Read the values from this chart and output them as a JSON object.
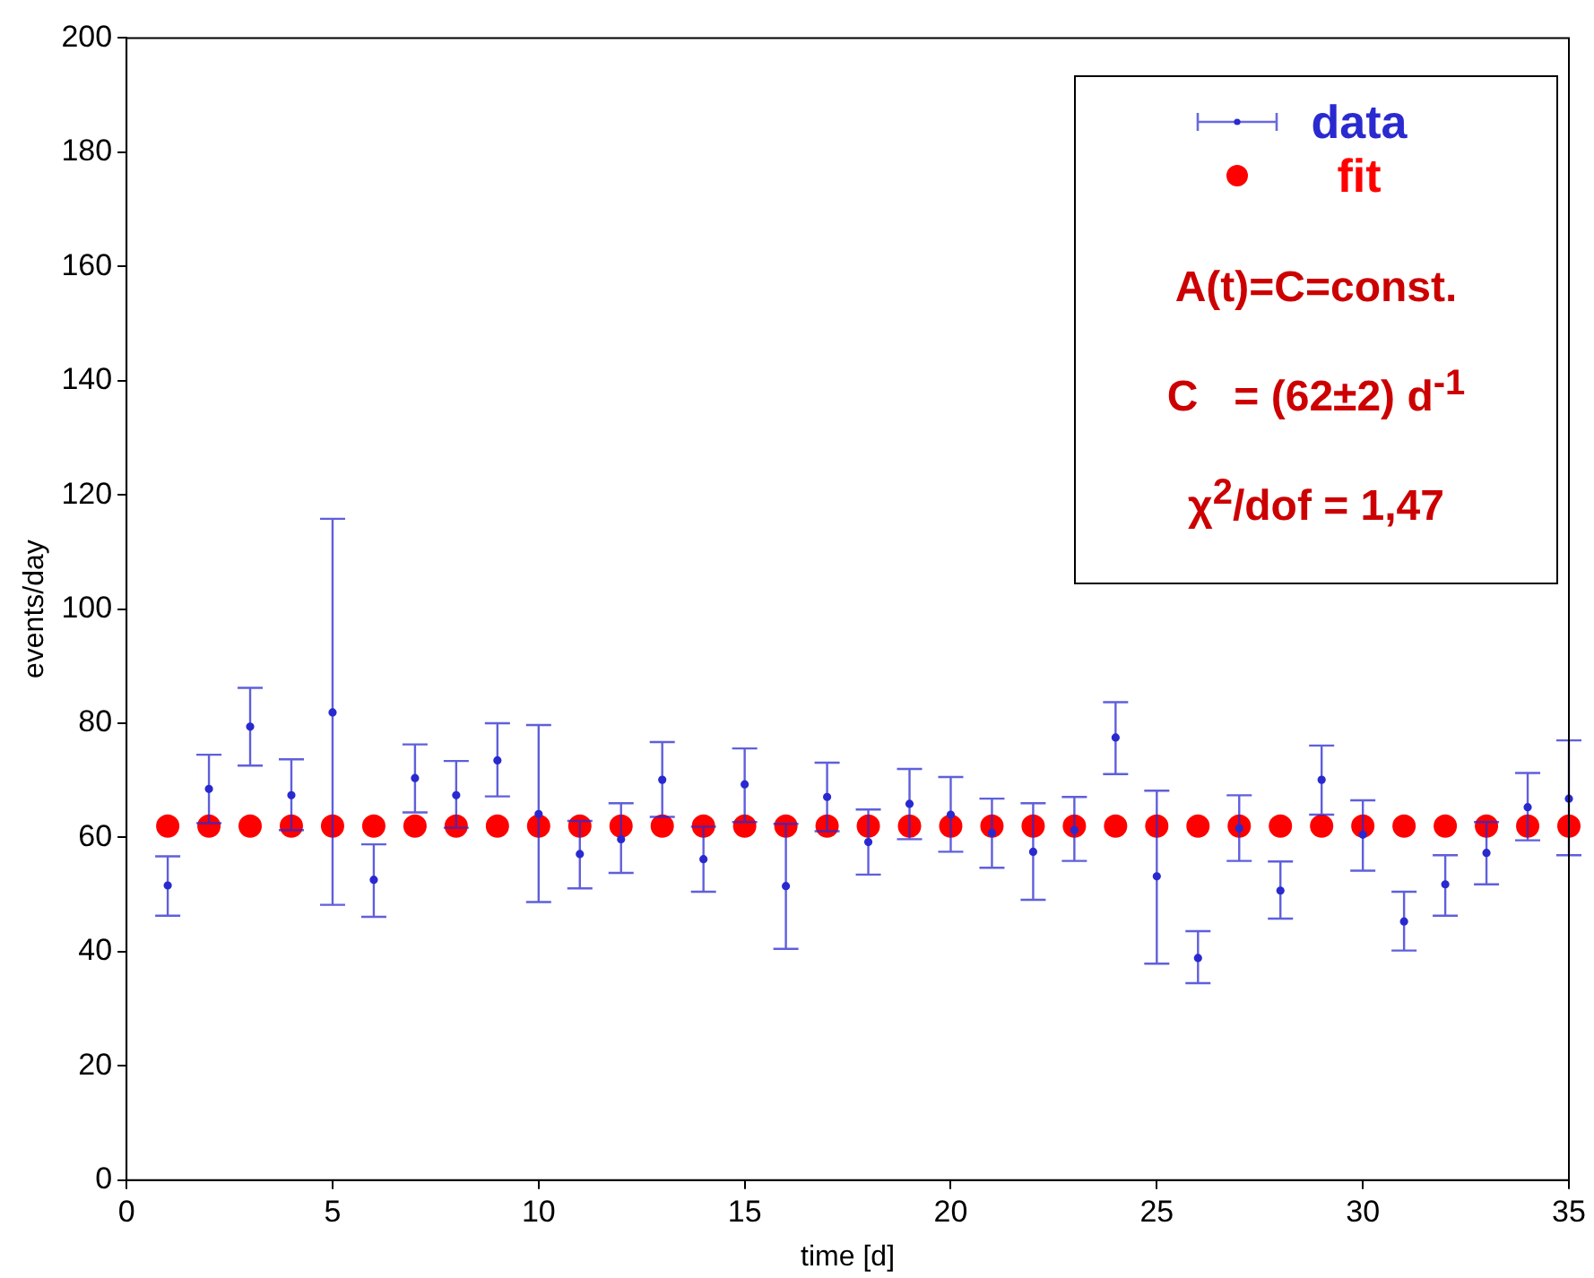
{
  "chart_data": {
    "type": "scatter",
    "xlabel": "time [d]",
    "ylabel": "events/day",
    "x": [
      1,
      2,
      3,
      4,
      5,
      6,
      7,
      8,
      9,
      10,
      11,
      12,
      13,
      14,
      15,
      16,
      17,
      18,
      19,
      20,
      21,
      22,
      23,
      24,
      25,
      26,
      27,
      28,
      29,
      30,
      31,
      32,
      33,
      34,
      35
    ],
    "series": [
      {
        "name": "data",
        "color": "#2a2ad0",
        "marker": "circle",
        "values": [
          51.6,
          68.5,
          79.4,
          67.4,
          81.9,
          52.6,
          70.4,
          67.4,
          73.5,
          64.1,
          57.1,
          59.7,
          70.1,
          56.2,
          69.3,
          51.5,
          67.1,
          59.2,
          65.9,
          64.0,
          60.8,
          57.5,
          61.3,
          77.5,
          53.2,
          38.9,
          61.6,
          50.7,
          70.1,
          60.5,
          45.3,
          51.8,
          57.3,
          65.3,
          66.8
        ],
        "errors": [
          [
            46.3,
            56.7
          ],
          [
            62.5,
            74.5
          ],
          [
            72.6,
            86.2
          ],
          [
            61.3,
            73.7
          ],
          [
            48.2,
            115.8
          ],
          [
            46.1,
            58.8
          ],
          [
            64.4,
            76.3
          ],
          [
            61.7,
            73.4
          ],
          [
            67.2,
            80.0
          ],
          [
            48.7,
            79.7
          ],
          [
            51.1,
            62.9
          ],
          [
            53.8,
            66.0
          ],
          [
            63.6,
            76.7
          ],
          [
            50.5,
            61.9
          ],
          [
            62.7,
            75.6
          ],
          [
            40.5,
            62.4
          ],
          [
            61.1,
            73.1
          ],
          [
            53.5,
            64.9
          ],
          [
            59.7,
            72.0
          ],
          [
            57.5,
            70.6
          ],
          [
            54.7,
            66.8
          ],
          [
            49.1,
            66.0
          ],
          [
            55.9,
            67.1
          ],
          [
            71.1,
            83.7
          ],
          [
            37.9,
            68.2
          ],
          [
            34.5,
            43.6
          ],
          [
            55.9,
            67.4
          ],
          [
            45.8,
            55.8
          ],
          [
            64.0,
            76.1
          ],
          [
            54.2,
            66.5
          ],
          [
            40.2,
            50.5
          ],
          [
            46.3,
            56.9
          ],
          [
            51.8,
            62.7
          ],
          [
            59.5,
            71.3
          ],
          [
            56.9,
            77.0
          ]
        ]
      },
      {
        "name": "fit",
        "color": "#ff0000",
        "marker": "circle",
        "values": [
          62,
          62,
          62,
          62,
          62,
          62,
          62,
          62,
          62,
          62,
          62,
          62,
          62,
          62,
          62,
          62,
          62,
          62,
          62,
          62,
          62,
          62,
          62,
          62,
          62,
          62,
          62,
          62,
          62,
          62,
          62,
          62,
          62,
          62,
          62
        ]
      }
    ],
    "xlim": [
      0,
      35
    ],
    "xticks": [
      0,
      5,
      10,
      15,
      20,
      25,
      30,
      35
    ],
    "ylim": [
      0,
      200
    ],
    "yticks": [
      0,
      20,
      40,
      60,
      80,
      100,
      120,
      140,
      160,
      180,
      200
    ],
    "grid": false,
    "legend": "top right",
    "annotations": [
      "A(t)=C=const.",
      "C   = (62±2) d$^{-1}$",
      "χ$^{2}$/dof = 1,47"
    ]
  }
}
